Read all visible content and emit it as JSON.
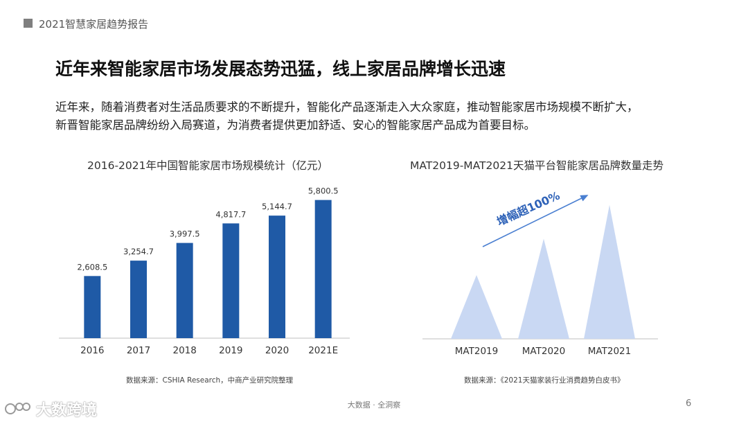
{
  "header": {
    "text": "2021智慧家居趋势报告"
  },
  "title": "近年来智能家居市场发展态势迅猛，线上家居品牌增长迅速",
  "description": {
    "line1": "近年来，随着消费者对生活品质要求的不断提升，智能化产品逐渐走入大众家庭，推动智能家居市场规模不断扩大，",
    "line2": "新晋智能家居品牌纷纷入局赛道，为消费者提供更加舒适、安心的智能家居产品成为首要目标。"
  },
  "chart_data": [
    {
      "type": "bar",
      "title": "2016-2021年中国智能家居市场规模统计（亿元）",
      "categories": [
        "2016",
        "2017",
        "2018",
        "2019",
        "2020",
        "2021E"
      ],
      "values": [
        2608.5,
        3254.7,
        3997.5,
        4817.7,
        5144.7,
        5800.5
      ],
      "value_labels": [
        "2,608.5",
        "3,254.7",
        "3,997.5",
        "4,817.7",
        "5,144.7",
        "5,800.5"
      ],
      "ylim": [
        0,
        6400
      ],
      "grid": false,
      "color": "#1f5aa6",
      "source": "数据来源：CSHIA Research，中商产业研究院整理"
    },
    {
      "type": "area",
      "title": "MAT2019-MAT2021天猫平台智能家居品牌数量走势",
      "categories": [
        "MAT2019",
        "MAT2020",
        "MAT2021"
      ],
      "values": [
        1.0,
        1.57,
        2.1
      ],
      "annotation": "增幅超100%",
      "color": "#c9d8f3",
      "arrow_color": "#4a7fd1",
      "source": "数据来源：《2021天猫家装行业消费趋势白皮书》"
    }
  ],
  "footer": {
    "text": "大数据 · 全洞察",
    "page": "6"
  },
  "watermark": {
    "text": "大数跨境"
  }
}
